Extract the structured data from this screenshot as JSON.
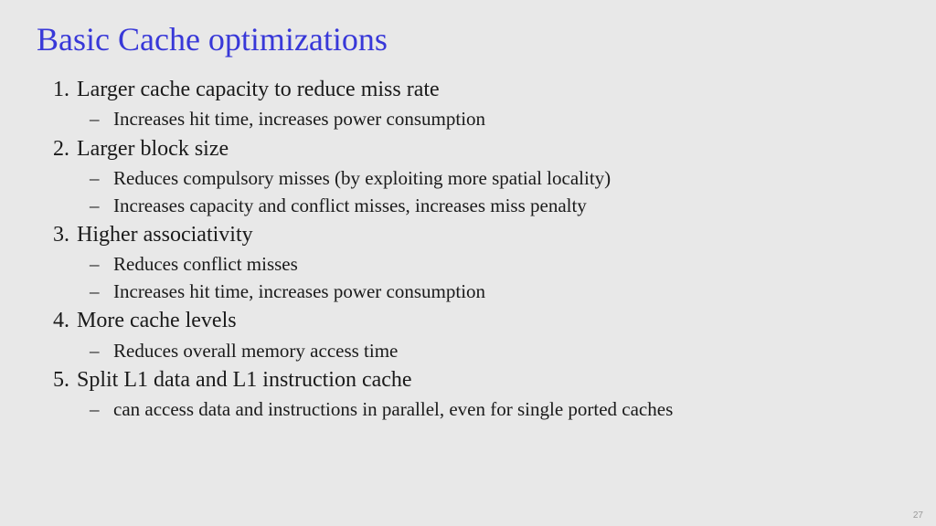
{
  "title": "Basic Cache optimizations",
  "title_color": "#3838d8",
  "background_color": "#e8e8e8",
  "text_color": "#1a1a1a",
  "font_family": "Times New Roman",
  "title_fontsize": 36,
  "main_fontsize": 24,
  "sub_fontsize": 21,
  "items": [
    {
      "text": "Larger cache capacity to reduce miss rate",
      "sub": [
        "Increases hit time, increases power consumption"
      ]
    },
    {
      "text": "Larger block size",
      "sub": [
        "Reduces compulsory misses (by exploiting more spatial locality)",
        "Increases capacity and conflict misses, increases miss penalty"
      ]
    },
    {
      "text": "Higher associativity",
      "sub": [
        "Reduces conflict misses",
        "Increases hit time, increases power consumption"
      ]
    },
    {
      "text": "More cache levels",
      "sub": [
        "Reduces overall memory access time"
      ]
    },
    {
      "text": "Split L1 data and L1 instruction cache",
      "sub": [
        "can access data and instructions in parallel, even for single ported caches"
      ]
    }
  ],
  "page_number": "27"
}
